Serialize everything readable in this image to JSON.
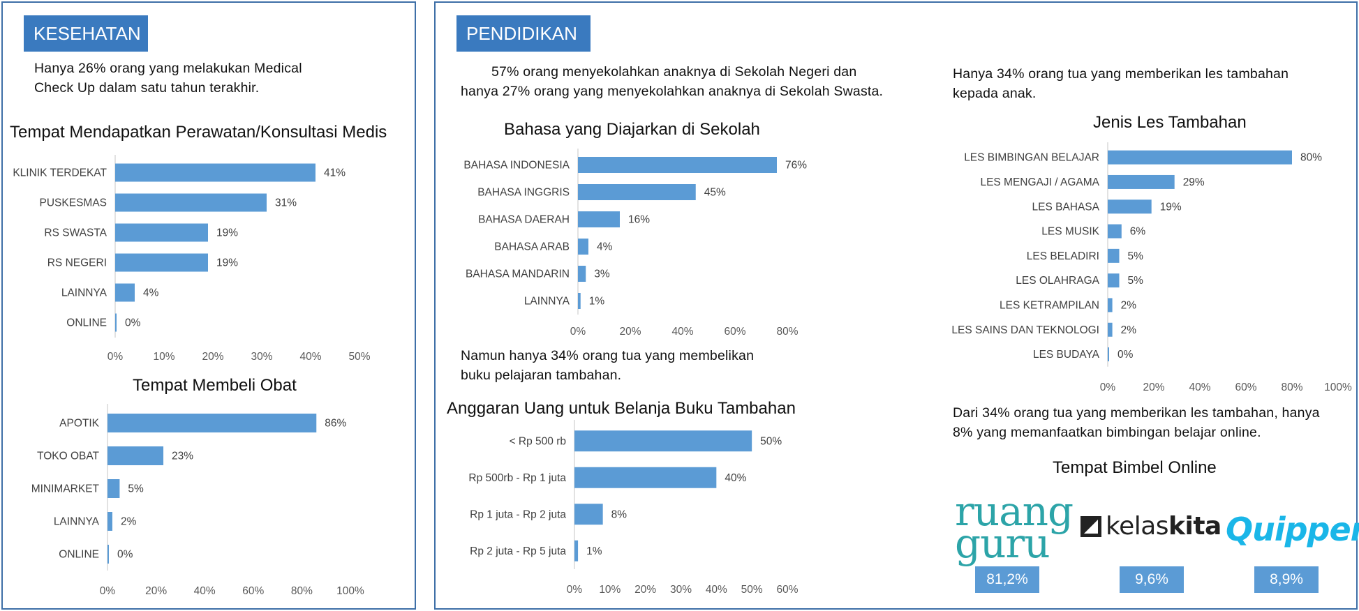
{
  "kesehatan": {
    "tag": "KESEHATAN",
    "intro_line1": "Hanya 26% orang yang melakukan Medical",
    "intro_line2": "Check Up dalam satu tahun terakhir."
  },
  "pendidikan": {
    "tag": "PENDIDIKAN",
    "intro_line1": "57% orang menyekolahkan anaknya di Sekolah Negeri dan",
    "intro_line2": "hanya 27% orang yang menyekolahkan anaknya di Sekolah Swasta.",
    "buku_line1": "Namun hanya 34% orang tua yang membelikan",
    "buku_line2": "buku pelajaran tambahan.",
    "les_line1": "Hanya 34% orang tua yang memberikan les tambahan",
    "les_line2": "kepada anak.",
    "online_line1": "Dari 34% orang tua yang memberikan les tambahan, hanya",
    "online_line2": "8% yang memanfaatkan bimbingan belajar online.",
    "bimbel_title": "Tempat Bimbel Online",
    "logos": {
      "ruangguru_line1": "ruang",
      "ruangguru_line2": "guru",
      "kelaskita_light": "kelas",
      "kelaskita_bold": "kita",
      "quipper": "Quipper"
    },
    "bimbel_values": [
      "81,2%",
      "9,6%",
      "8,9%"
    ]
  },
  "colors": {
    "bar": "#5b9bd5",
    "border": "#3e6fa7",
    "tag": "#3a7abf",
    "axis": "#d9d9d9"
  },
  "chart_data": [
    {
      "id": "perawatan",
      "type": "bar",
      "orientation": "horizontal",
      "title": "Tempat Mendapatkan Perawatan/Konsultasi Medis",
      "categories": [
        "KLINIK TERDEKAT",
        "PUSKESMAS",
        "RS SWASTA",
        "RS NEGERI",
        "LAINNYA",
        "ONLINE"
      ],
      "values": [
        41,
        31,
        19,
        19,
        4,
        0
      ],
      "value_labels": [
        "41%",
        "31%",
        "19%",
        "19%",
        "4%",
        "0%"
      ],
      "xlim": [
        0,
        50
      ],
      "ticks": [
        "0%",
        "10%",
        "20%",
        "30%",
        "40%",
        "50%"
      ],
      "grid": false
    },
    {
      "id": "obat",
      "type": "bar",
      "orientation": "horizontal",
      "title": "Tempat Membeli Obat",
      "categories": [
        "APOTIK",
        "TOKO OBAT",
        "MINIMARKET",
        "LAINNYA",
        "ONLINE"
      ],
      "values": [
        86,
        23,
        5,
        2,
        0
      ],
      "value_labels": [
        "86%",
        "23%",
        "5%",
        "2%",
        "0%"
      ],
      "xlim": [
        0,
        100
      ],
      "ticks": [
        "0%",
        "20%",
        "40%",
        "60%",
        "80%",
        "100%"
      ],
      "grid": false
    },
    {
      "id": "bahasa",
      "type": "bar",
      "orientation": "horizontal",
      "title": "Bahasa yang Diajarkan di Sekolah",
      "categories": [
        "BAHASA INDONESIA",
        "BAHASA INGGRIS",
        "BAHASA DAERAH",
        "BAHASA ARAB",
        "BAHASA MANDARIN",
        "LAINNYA"
      ],
      "values": [
        76,
        45,
        16,
        4,
        3,
        1
      ],
      "value_labels": [
        "76%",
        "45%",
        "16%",
        "4%",
        "3%",
        "1%"
      ],
      "xlim": [
        0,
        80
      ],
      "ticks": [
        "0%",
        "20%",
        "40%",
        "60%",
        "80%"
      ],
      "grid": false
    },
    {
      "id": "anggaran",
      "type": "bar",
      "orientation": "horizontal",
      "title": "Anggaran Uang untuk Belanja Buku Tambahan",
      "categories": [
        "< Rp 500 rb",
        "Rp 500rb - Rp 1 juta",
        "Rp 1 juta - Rp 2 juta",
        "Rp 2 juta - Rp 5 juta"
      ],
      "values": [
        50,
        40,
        8,
        1
      ],
      "value_labels": [
        "50%",
        "40%",
        "8%",
        "1%"
      ],
      "xlim": [
        0,
        60
      ],
      "ticks": [
        "0%",
        "10%",
        "20%",
        "30%",
        "40%",
        "50%",
        "60%"
      ],
      "grid": false
    },
    {
      "id": "les",
      "type": "bar",
      "orientation": "horizontal",
      "title": "Jenis Les Tambahan",
      "categories": [
        "LES BIMBINGAN BELAJAR",
        "LES MENGAJI / AGAMA",
        "LES BAHASA",
        "LES MUSIK",
        "LES BELADIRI",
        "LES OLAHRAGA",
        "LES KETRAMPILAN",
        "LES SAINS DAN TEKNOLOGI",
        "LES BUDAYA"
      ],
      "values": [
        80,
        29,
        19,
        6,
        5,
        5,
        2,
        2,
        0
      ],
      "value_labels": [
        "80%",
        "29%",
        "19%",
        "6%",
        "5%",
        "5%",
        "2%",
        "2%",
        "0%"
      ],
      "xlim": [
        0,
        100
      ],
      "ticks": [
        "0%",
        "20%",
        "40%",
        "60%",
        "80%",
        "100%"
      ],
      "grid": false
    }
  ]
}
